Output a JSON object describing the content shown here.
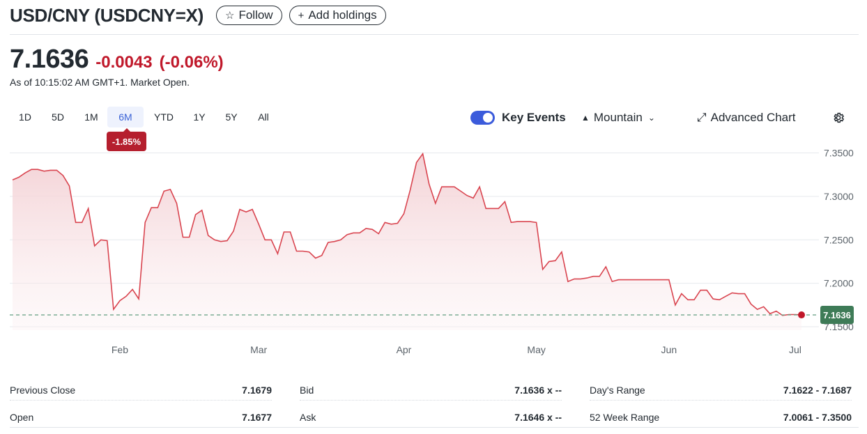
{
  "header": {
    "title": "USD/CNY (USDCNY=X)",
    "follow_label": "Follow",
    "add_holdings_label": "Add holdings",
    "follow_icon": "star-outline-icon",
    "add_icon": "plus-icon"
  },
  "quote": {
    "price": "7.1636",
    "change": "-0.0043",
    "change_pct": "(-0.06%)",
    "as_of": "As of 10:15:02 AM GMT+1. Market Open.",
    "change_color": "#c0182a"
  },
  "ranges": {
    "items": [
      "1D",
      "5D",
      "1M",
      "6M",
      "YTD",
      "1Y",
      "5Y",
      "All"
    ],
    "active": "6M",
    "active_change": "-1.85%"
  },
  "toolbar": {
    "key_events_label": "Key Events",
    "key_events_on": true,
    "chart_type_label": "Mountain",
    "advanced_label": "Advanced Chart",
    "settings_icon": "gear-icon"
  },
  "chart_data": {
    "type": "area",
    "title": "",
    "xlabel": "",
    "ylabel": "",
    "x_tick_labels": [
      "Feb",
      "Mar",
      "Apr",
      "May",
      "Jun",
      "Jul"
    ],
    "y_ticks": [
      "7.3500",
      "7.3000",
      "7.2500",
      "7.2000",
      "7.1500"
    ],
    "ylim": [
      7.146,
      7.352
    ],
    "previous_close": 7.1679,
    "last_value": 7.1636,
    "last_label": "7.1636",
    "line_color": "#d9444f",
    "fill_color": "#f6d9dc",
    "last_tag_color": "#3e7b57",
    "grid": true,
    "series": [
      {
        "values": [
          7.319,
          7.322,
          7.327,
          7.331,
          7.331,
          7.329,
          7.33,
          7.33,
          7.324,
          7.312,
          7.27,
          7.27,
          7.286,
          7.243,
          7.25,
          7.249,
          7.17,
          7.18,
          7.185,
          7.193,
          7.182,
          7.27,
          7.287,
          7.287,
          7.306,
          7.308,
          7.292,
          7.253,
          7.253,
          7.279,
          7.284,
          7.255,
          7.25,
          7.248,
          7.249,
          7.26,
          7.285,
          7.282,
          7.285,
          7.268,
          7.25,
          7.25,
          7.234,
          7.259,
          7.259,
          7.237,
          7.237,
          7.236,
          7.229,
          7.232,
          7.247,
          7.248,
          7.25,
          7.256,
          7.258,
          7.258,
          7.263,
          7.262,
          7.257,
          7.27,
          7.268,
          7.269,
          7.28,
          7.307,
          7.339,
          7.349,
          7.314,
          7.292,
          7.311,
          7.311,
          7.311,
          7.306,
          7.301,
          7.298,
          7.311,
          7.286,
          7.286,
          7.286,
          7.294,
          7.27,
          7.271,
          7.271,
          7.271,
          7.27,
          7.216,
          7.225,
          7.226,
          7.236,
          7.202,
          7.205,
          7.205,
          7.206,
          7.208,
          7.208,
          7.219,
          7.202,
          7.204,
          7.204,
          7.204,
          7.204,
          7.204,
          7.204,
          7.204,
          7.204,
          7.204,
          7.175,
          7.188,
          7.181,
          7.181,
          7.192,
          7.192,
          7.182,
          7.181,
          7.185,
          7.189,
          7.188,
          7.188,
          7.176,
          7.17,
          7.173,
          7.165,
          7.168,
          7.163,
          7.164,
          7.164,
          7.1636
        ]
      }
    ]
  },
  "stats": [
    {
      "label": "Previous Close",
      "value": "7.1679"
    },
    {
      "label": "Bid",
      "value": "7.1636 x --"
    },
    {
      "label": "Day's Range",
      "value": "7.1622 - 7.1687"
    },
    {
      "label": "Open",
      "value": "7.1677"
    },
    {
      "label": "Ask",
      "value": "7.1646 x --"
    },
    {
      "label": "52 Week Range",
      "value": "7.0061 - 7.3500"
    }
  ]
}
